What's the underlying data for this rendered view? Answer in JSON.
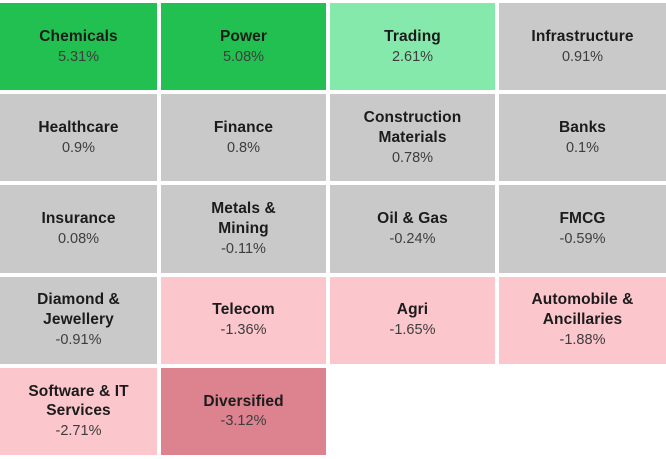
{
  "chart_data": {
    "type": "heatmap",
    "description_visible_text_only": "",
    "layout": {
      "columns": 4,
      "rows": 5,
      "gap_color": "#ffffff",
      "background": "#ffffff"
    },
    "colors": {
      "strong_green": "#22c051",
      "light_green": "#85e9ab",
      "neutral_grey": "#c9c9c9",
      "light_pink": "#fbc6cc",
      "dark_pink": "#dd8390"
    },
    "cells": [
      {
        "name": "Chemicals",
        "value": 5.31,
        "label": "Chemicals",
        "change_label": "5.31%",
        "tone": "strong_green"
      },
      {
        "name": "Power",
        "value": 5.08,
        "label": "Power",
        "change_label": "5.08%",
        "tone": "strong_green"
      },
      {
        "name": "Trading",
        "value": 2.61,
        "label": "Trading",
        "change_label": "2.61%",
        "tone": "light_green"
      },
      {
        "name": "Infrastructure",
        "value": 0.91,
        "label": "Infrastructure",
        "change_label": "0.91%",
        "tone": "neutral_grey"
      },
      {
        "name": "Healthcare",
        "value": 0.9,
        "label": "Healthcare",
        "change_label": "0.9%",
        "tone": "neutral_grey"
      },
      {
        "name": "Finance",
        "value": 0.8,
        "label": "Finance",
        "change_label": "0.8%",
        "tone": "neutral_grey"
      },
      {
        "name": "Construction Materials",
        "value": 0.78,
        "label": "Construction\nMaterials",
        "change_label": "0.78%",
        "tone": "neutral_grey"
      },
      {
        "name": "Banks",
        "value": 0.1,
        "label": "Banks",
        "change_label": "0.1%",
        "tone": "neutral_grey"
      },
      {
        "name": "Insurance",
        "value": 0.08,
        "label": "Insurance",
        "change_label": "0.08%",
        "tone": "neutral_grey"
      },
      {
        "name": "Metals & Mining",
        "value": -0.11,
        "label": "Metals &\nMining",
        "change_label": "-0.11%",
        "tone": "neutral_grey"
      },
      {
        "name": "Oil & Gas",
        "value": -0.24,
        "label": "Oil & Gas",
        "change_label": "-0.24%",
        "tone": "neutral_grey"
      },
      {
        "name": "FMCG",
        "value": -0.59,
        "label": "FMCG",
        "change_label": "-0.59%",
        "tone": "neutral_grey"
      },
      {
        "name": "Diamond & Jewellery",
        "value": -0.91,
        "label": "Diamond &\nJewellery",
        "change_label": "-0.91%",
        "tone": "neutral_grey"
      },
      {
        "name": "Telecom",
        "value": -1.36,
        "label": "Telecom",
        "change_label": "-1.36%",
        "tone": "light_pink"
      },
      {
        "name": "Agri",
        "value": -1.65,
        "label": "Agri",
        "change_label": "-1.65%",
        "tone": "light_pink"
      },
      {
        "name": "Automobile & Ancillaries",
        "value": -1.88,
        "label": "Automobile &\nAncillaries",
        "change_label": "-1.88%",
        "tone": "light_pink"
      },
      {
        "name": "Software & IT Services",
        "value": -2.71,
        "label": "Software & IT\nServices",
        "change_label": "-2.71%",
        "tone": "light_pink"
      },
      {
        "name": "Diversified",
        "value": -3.12,
        "label": "Diversified",
        "change_label": "-3.12%",
        "tone": "dark_pink"
      }
    ]
  }
}
